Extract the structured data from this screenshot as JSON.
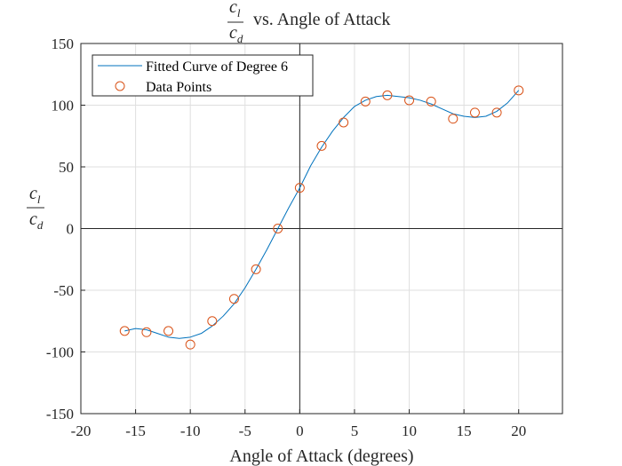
{
  "chart_data": {
    "type": "scatter",
    "title": {
      "numerator": "c",
      "numerator_sub": "l",
      "denominator": "c",
      "denominator_sub": "d",
      "suffix": "vs. Angle of Attack"
    },
    "xlabel": "Angle of Attack (degrees)",
    "ylabel": {
      "numerator": "c",
      "numerator_sub": "l",
      "denominator": "c",
      "denominator_sub": "d"
    },
    "xlim": [
      -20,
      24
    ],
    "ylim": [
      -150,
      150
    ],
    "xticks": [
      -20,
      -15,
      -10,
      -5,
      0,
      5,
      10,
      15,
      20
    ],
    "yticks": [
      -150,
      -100,
      -50,
      0,
      50,
      100,
      150
    ],
    "grid": true,
    "legend_position": "top-left",
    "series": [
      {
        "name": "Fitted Curve of Degree 6",
        "kind": "line",
        "color": "#0072BD",
        "x": [
          -16,
          -15,
          -14,
          -13,
          -12,
          -11,
          -10,
          -9,
          -8,
          -7,
          -6,
          -5,
          -4,
          -3,
          -2,
          -1,
          0,
          1,
          2,
          3,
          4,
          5,
          6,
          7,
          8,
          9,
          10,
          11,
          12,
          13,
          14,
          15,
          16,
          17,
          18,
          19,
          20
        ],
        "y": [
          -83,
          -81,
          -82,
          -85,
          -88,
          -89,
          -88,
          -85,
          -79,
          -71,
          -61,
          -48,
          -33,
          -17,
          0,
          17,
          33,
          51,
          66,
          79,
          90,
          99,
          104,
          107,
          108,
          107,
          106,
          104,
          101,
          97,
          93,
          91,
          90,
          91,
          95,
          102,
          112
        ]
      },
      {
        "name": "Data Points",
        "kind": "scatter",
        "color": "#D95319",
        "x": [
          -16,
          -14,
          -12,
          -10,
          -8,
          -6,
          -4,
          -2,
          0,
          2,
          4,
          6,
          8,
          10,
          12,
          14,
          16,
          18,
          20
        ],
        "y": [
          -83,
          -84,
          -83,
          -94,
          -75,
          -57,
          -33,
          0,
          33,
          67,
          86,
          103,
          108,
          104,
          103,
          89,
          94,
          94,
          112
        ]
      }
    ]
  }
}
